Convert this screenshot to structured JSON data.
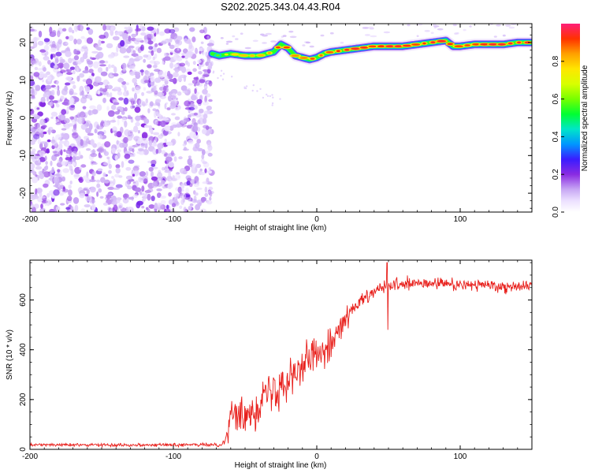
{
  "chart_data": [
    {
      "type": "heatmap",
      "title": "S202.2025.343.04.43.R04",
      "xlabel": "Height of straight line (km)",
      "ylabel": "Frequency (Hz)",
      "xlim": [
        -200,
        150
      ],
      "ylim": [
        -25,
        25
      ],
      "x_ticks": [
        -200,
        -100,
        0,
        100
      ],
      "x_tick_labels": [
        "-200",
        "-100",
        "0",
        "100"
      ],
      "y_ticks": [
        20,
        10,
        0,
        -10,
        -20
      ],
      "y_tick_labels": [
        "20",
        "10",
        "0",
        "-10",
        "-20"
      ],
      "noise_region_x": [
        -200,
        -73
      ],
      "noise_region_y": [
        -25,
        24
      ],
      "ridge": {
        "x": [
          -73,
          -68,
          -60,
          -50,
          -40,
          -30,
          -25,
          -20,
          -15,
          -10,
          -5,
          0,
          5,
          10,
          20,
          30,
          40,
          50,
          60,
          70,
          80,
          90,
          95,
          100,
          110,
          120,
          130,
          140,
          150
        ],
        "frequency": [
          17,
          16.5,
          17,
          16.5,
          16.5,
          17.5,
          19.5,
          18.5,
          16.5,
          16,
          15.5,
          16,
          17,
          17.5,
          18,
          18.5,
          19,
          19,
          19,
          19.5,
          20,
          20.5,
          19,
          19,
          19.5,
          19.5,
          19.5,
          20,
          20
        ],
        "amplitude": [
          0.5,
          0.6,
          0.75,
          0.8,
          0.8,
          0.85,
          0.95,
          0.9,
          0.85,
          0.85,
          0.9,
          0.9,
          0.85,
          0.9,
          0.95,
          0.95,
          0.9,
          0.95,
          0.95,
          0.9,
          0.95,
          0.95,
          0.9,
          0.9,
          0.9,
          0.95,
          0.95,
          0.95,
          0.95
        ]
      },
      "colorbar": {
        "label": "Normalized spectral amplitude",
        "range": [
          0,
          1
        ],
        "ticks": [
          0,
          0.2,
          0.4,
          0.6,
          0.8
        ],
        "tick_labels": [
          "0.0",
          "0.2",
          "0.4",
          "0.6",
          "0.8"
        ],
        "stops": [
          {
            "value": 0.0,
            "color": "#ffffff"
          },
          {
            "value": 0.06,
            "color": "#ece0ff"
          },
          {
            "value": 0.12,
            "color": "#c8a8f4"
          },
          {
            "value": 0.2,
            "color": "#8a2be2"
          },
          {
            "value": 0.28,
            "color": "#3a1cff"
          },
          {
            "value": 0.36,
            "color": "#0096ff"
          },
          {
            "value": 0.44,
            "color": "#00e6c8"
          },
          {
            "value": 0.52,
            "color": "#00ff32"
          },
          {
            "value": 0.6,
            "color": "#78ff00"
          },
          {
            "value": 0.68,
            "color": "#d8ff00"
          },
          {
            "value": 0.76,
            "color": "#ffe600"
          },
          {
            "value": 0.84,
            "color": "#ffa000"
          },
          {
            "value": 0.92,
            "color": "#ff3200"
          },
          {
            "value": 1.0,
            "color": "#ff1e78"
          }
        ]
      }
    },
    {
      "type": "line",
      "xlabel": "Height of straight line (km)",
      "ylabel": "SNR (10 * v/v)",
      "xlim": [
        -200,
        150
      ],
      "ylim": [
        0,
        760
      ],
      "x_ticks": [
        -200,
        -100,
        0,
        100
      ],
      "x_tick_labels": [
        "-200",
        "-100",
        "0",
        "100"
      ],
      "y_ticks": [
        0,
        200,
        400,
        600
      ],
      "y_tick_labels": [
        "0",
        "200",
        "400",
        "600"
      ],
      "series": [
        {
          "name": "SNR",
          "color": "#e8201c",
          "x": [
            -200,
            -180,
            -160,
            -140,
            -120,
            -100,
            -80,
            -66,
            -62,
            -60,
            -58,
            -55,
            -50,
            -45,
            -40,
            -35,
            -30,
            -25,
            -20,
            -15,
            -10,
            -5,
            0,
            5,
            10,
            15,
            20,
            25,
            30,
            35,
            40,
            45,
            48,
            50,
            55,
            60,
            70,
            80,
            90,
            100,
            110,
            120,
            130,
            140,
            150
          ],
          "mean": [
            18,
            18,
            18,
            18,
            18,
            18,
            18,
            20,
            60,
            150,
            170,
            110,
            140,
            160,
            190,
            220,
            240,
            270,
            300,
            320,
            330,
            360,
            390,
            410,
            430,
            480,
            520,
            560,
            590,
            610,
            630,
            650,
            660,
            650,
            660,
            660,
            665,
            665,
            665,
            660,
            660,
            660,
            655,
            655,
            660
          ],
          "spread": [
            10,
            10,
            10,
            10,
            10,
            10,
            10,
            15,
            60,
            100,
            110,
            110,
            120,
            130,
            140,
            150,
            150,
            150,
            150,
            140,
            140,
            130,
            120,
            110,
            100,
            80,
            70,
            60,
            50,
            50,
            40,
            40,
            40,
            40,
            40,
            40,
            40,
            40,
            40,
            40,
            40,
            40,
            40,
            40,
            40
          ]
        }
      ],
      "annotations": [
        {
          "x": 49,
          "y": 750,
          "text": ""
        },
        {
          "x": 49,
          "y": 480,
          "text": ""
        }
      ]
    }
  ]
}
